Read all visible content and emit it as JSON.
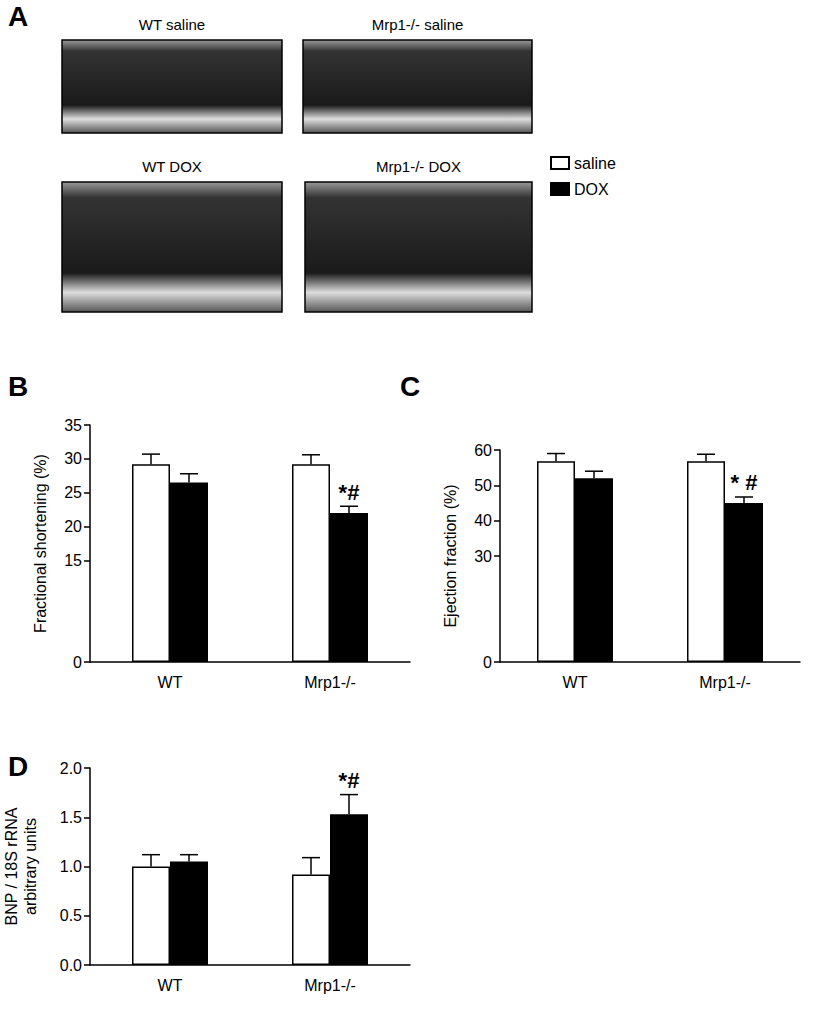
{
  "panel_a": {
    "label": "A",
    "images": [
      "WT saline",
      "Mrp1-/- saline",
      "WT DOX",
      "Mrp1-/- DOX"
    ]
  },
  "chart_data": [
    {
      "type": "bar",
      "label": "B",
      "ylabel": "Fractional shortening (%)",
      "categories": [
        "WT",
        "Mrp1-/-"
      ],
      "series": [
        {
          "name": "saline",
          "color": "#ffffff",
          "values": [
            29.2,
            29.2
          ],
          "errors": [
            1.5,
            1.4
          ]
        },
        {
          "name": "DOX",
          "color": "#000000",
          "values": [
            26.5,
            22.0
          ],
          "errors": [
            1.3,
            1.0
          ]
        }
      ],
      "ylim": [
        0,
        35
      ],
      "yticks": [
        0,
        15,
        20,
        25,
        30,
        35
      ],
      "grid": false,
      "annotations": [
        {
          "text": "*#",
          "category": "Mrp1-/-",
          "series": "DOX"
        }
      ]
    },
    {
      "type": "bar",
      "label": "C",
      "ylabel": "Ejection fraction (%)",
      "categories": [
        "WT",
        "Mrp1-/-"
      ],
      "series": [
        {
          "name": "saline",
          "color": "#ffffff",
          "values": [
            56.8,
            56.8
          ],
          "errors": [
            2.2,
            2.0
          ]
        },
        {
          "name": "DOX",
          "color": "#000000",
          "values": [
            52.0,
            45.0
          ],
          "errors": [
            2.0,
            1.7
          ]
        }
      ],
      "ylim": [
        0,
        60
      ],
      "yticks": [
        0,
        30,
        40,
        50,
        60
      ],
      "grid": false,
      "legend": "top right",
      "annotations": [
        {
          "text": "* #",
          "category": "Mrp1-/-",
          "series": "DOX"
        }
      ]
    },
    {
      "type": "bar",
      "label": "D",
      "ylabel": "BNP / 18S rRNA\narbitrary units",
      "categories": [
        "WT",
        "Mrp1-/-"
      ],
      "series": [
        {
          "name": "saline",
          "color": "#ffffff",
          "values": [
            1.0,
            0.92
          ],
          "errors": [
            0.12,
            0.17
          ]
        },
        {
          "name": "DOX",
          "color": "#000000",
          "values": [
            1.05,
            1.53
          ],
          "errors": [
            0.07,
            0.2
          ]
        }
      ],
      "ylim": [
        0,
        2
      ],
      "yticks": [
        {
          "value": 0,
          "label": "0.0"
        },
        {
          "value": 0.5,
          "label": "0.5"
        },
        {
          "value": 1,
          "label": "1.0"
        },
        {
          "value": 1.5,
          "label": "1.5"
        },
        {
          "value": 2,
          "label": "2.0"
        }
      ],
      "grid": false,
      "annotations": [
        {
          "text": "*#",
          "category": "Mrp1-/-",
          "series": "DOX"
        }
      ]
    }
  ]
}
